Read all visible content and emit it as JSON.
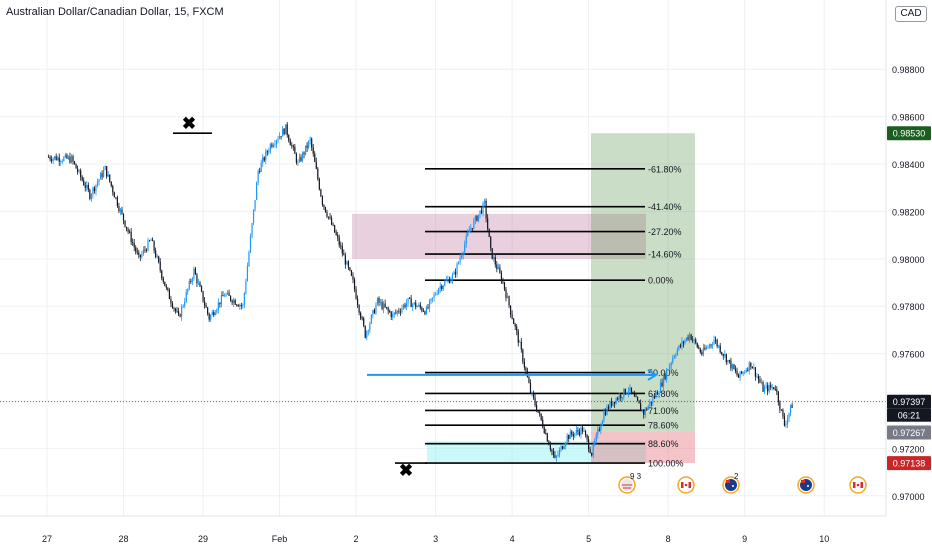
{
  "chart_data": {
    "type": "candlestick",
    "title": "Australian Dollar/Canadian Dollar, 15, FXCM",
    "currency_label": "CAD",
    "y_ticks": [
      "0.98800",
      "0.98600",
      "0.98400",
      "0.98200",
      "0.98000",
      "0.97800",
      "0.97600",
      "0.97200",
      "0.97000"
    ],
    "x_ticks": [
      "27",
      "28",
      "29",
      "Feb",
      "2",
      "3",
      "4",
      "5",
      "8",
      "9",
      "10"
    ],
    "ylim": [
      0.9694,
      0.9905
    ],
    "grid": true,
    "price_path": [
      [
        0.0,
        0.9843
      ],
      [
        0.8,
        0.9842
      ],
      [
        1.4,
        0.9827
      ],
      [
        1.9,
        0.9838
      ],
      [
        2.4,
        0.982
      ],
      [
        3.0,
        0.98
      ],
      [
        3.4,
        0.9808
      ],
      [
        3.9,
        0.9787
      ],
      [
        4.3,
        0.9775
      ],
      [
        4.8,
        0.9795
      ],
      [
        5.3,
        0.9775
      ],
      [
        5.8,
        0.9785
      ],
      [
        6.4,
        0.978
      ],
      [
        6.9,
        0.9837
      ],
      [
        7.3,
        0.9848
      ],
      [
        7.8,
        0.9855
      ],
      [
        8.2,
        0.984
      ],
      [
        8.6,
        0.985
      ],
      [
        9.0,
        0.9824
      ],
      [
        9.5,
        0.9808
      ],
      [
        10.0,
        0.979
      ],
      [
        10.4,
        0.9768
      ],
      [
        10.8,
        0.9782
      ],
      [
        11.3,
        0.9776
      ],
      [
        11.8,
        0.9782
      ],
      [
        12.4,
        0.9778
      ],
      [
        12.8,
        0.9788
      ],
      [
        13.3,
        0.9793
      ],
      [
        13.8,
        0.9812
      ],
      [
        14.3,
        0.9823
      ],
      [
        14.5,
        0.9803
      ],
      [
        14.9,
        0.979
      ],
      [
        15.4,
        0.9766
      ],
      [
        15.8,
        0.9744
      ],
      [
        16.2,
        0.973
      ],
      [
        16.6,
        0.9715
      ],
      [
        17.0,
        0.9725
      ],
      [
        17.5,
        0.9728
      ],
      [
        17.8,
        0.9718
      ],
      [
        18.2,
        0.9735
      ],
      [
        18.5,
        0.974
      ],
      [
        19.0,
        0.9745
      ],
      [
        19.5,
        0.9735
      ],
      [
        20.0,
        0.9745
      ],
      [
        20.5,
        0.976
      ],
      [
        21.0,
        0.9768
      ],
      [
        21.4,
        0.976
      ],
      [
        21.8,
        0.9766
      ],
      [
        22.2,
        0.9758
      ],
      [
        22.6,
        0.975
      ],
      [
        23.0,
        0.9756
      ],
      [
        23.4,
        0.9745
      ],
      [
        23.8,
        0.9746
      ],
      [
        24.1,
        0.973
      ],
      [
        24.4,
        0.974
      ]
    ],
    "price_labels": [
      {
        "value": 0.9853,
        "text": "0.98530",
        "color": "#1b5e20"
      },
      {
        "value": 0.97397,
        "text": "0.97397",
        "color": "#131722"
      },
      {
        "value": 0.97267,
        "text": "0.97267",
        "color": "#787b86"
      },
      {
        "value": 0.97138,
        "text": "0.97138",
        "color": "#c62828"
      }
    ],
    "countdown": "06:21",
    "fib_levels": [
      {
        "label": "-61.80%",
        "value": 0.9838
      },
      {
        "label": "-41.40%",
        "value": 0.9822
      },
      {
        "label": "-27.20%",
        "value": 0.98115
      },
      {
        "label": "-14.60%",
        "value": 0.9802
      },
      {
        "label": "0.00%",
        "value": 0.9791
      },
      {
        "label": "50.00%",
        "value": 0.9752
      },
      {
        "label": "61.80%",
        "value": 0.97432
      },
      {
        "label": "71.00%",
        "value": 0.9736
      },
      {
        "label": "78.60%",
        "value": 0.97298
      },
      {
        "label": "88.60%",
        "value": 0.9722
      },
      {
        "label": "100.00%",
        "value": 0.97138
      }
    ],
    "zones": [
      {
        "kind": "supply",
        "top": 0.9819,
        "bottom": 0.98,
        "color": "rgba(190,120,160,0.35)"
      },
      {
        "kind": "demand",
        "top": 0.9723,
        "bottom": 0.97138,
        "color": "rgba(140,240,240,0.45)"
      },
      {
        "kind": "target",
        "top": 0.9853,
        "bottom": 0.9727,
        "color": "rgba(90,150,80,0.32)"
      },
      {
        "kind": "stop",
        "top": 0.9727,
        "bottom": 0.97138,
        "color": "rgba(230,100,110,0.38)"
      }
    ],
    "markers": [
      {
        "symbol": "✖",
        "value": 0.9856,
        "kind": "swing-high"
      },
      {
        "symbol": "✖",
        "value": 0.97138,
        "kind": "swing-low"
      }
    ],
    "event_badges": [
      {
        "count": "9 3",
        "kind": "multi"
      },
      {
        "count": "",
        "kind": "canada-flag"
      },
      {
        "count": "2",
        "kind": "australia-flag"
      },
      {
        "count": "",
        "kind": "australia-flag"
      },
      {
        "count": "",
        "kind": "canada-flag"
      }
    ]
  }
}
